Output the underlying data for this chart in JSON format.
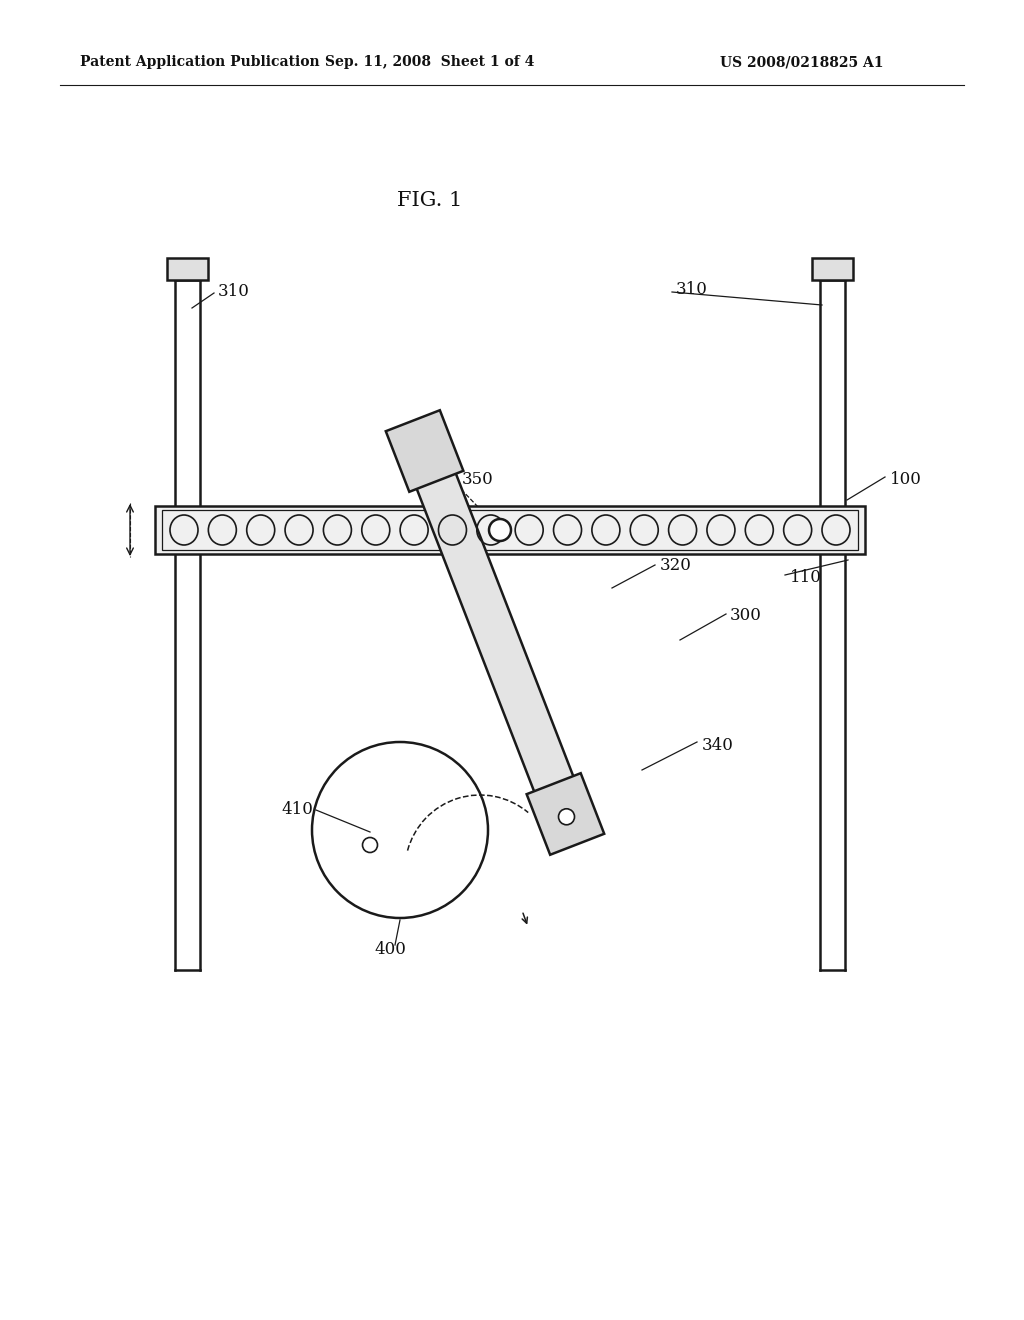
{
  "bg_color": "#ffffff",
  "line_color": "#1a1a1a",
  "fig_title": "FIG. 1",
  "header_left": "Patent Application Publication",
  "header_mid": "Sep. 11, 2008  Sheet 1 of 4",
  "header_right": "US 2008/0218825 A1"
}
